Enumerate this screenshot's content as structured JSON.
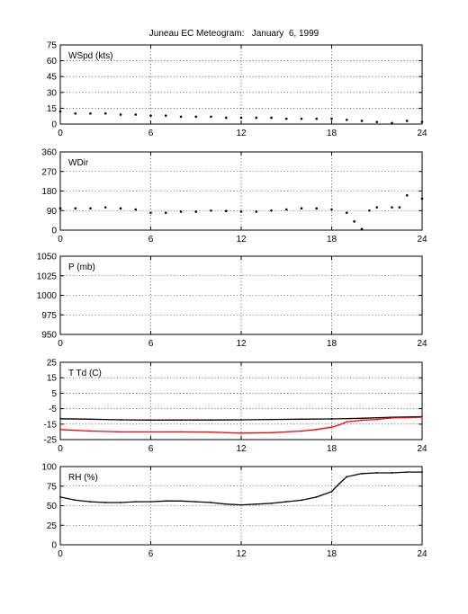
{
  "figure": {
    "title": "Juneau EC Meteogram:   January  6, 1999"
  },
  "chart_data": [
    {
      "type": "scatter",
      "panel_label": "WSpd (kts)",
      "xlim": [
        0,
        24
      ],
      "ylim": [
        0,
        75
      ],
      "xticks": [
        0,
        6,
        12,
        18,
        24
      ],
      "yticks": [
        0,
        15,
        30,
        45,
        60,
        75
      ],
      "grid": true,
      "series": [
        {
          "color": "#000000",
          "x": [
            0,
            1,
            2,
            3,
            4,
            5,
            6,
            7,
            8,
            9,
            10,
            11,
            12,
            13,
            14,
            15,
            16,
            17,
            18,
            19,
            20,
            21,
            22,
            23,
            24
          ],
          "y": [
            12,
            10,
            10,
            10,
            9,
            9,
            8,
            8,
            7,
            7,
            7,
            6,
            6,
            6,
            6,
            5,
            5,
            5,
            5,
            4,
            3,
            2,
            1,
            3,
            2
          ]
        }
      ]
    },
    {
      "type": "scatter",
      "panel_label": "WDir",
      "xlim": [
        0,
        24
      ],
      "ylim": [
        0,
        360
      ],
      "xticks": [
        0,
        6,
        12,
        18,
        24
      ],
      "yticks": [
        0,
        90,
        180,
        270,
        360
      ],
      "grid": true,
      "series": [
        {
          "color": "#000000",
          "x": [
            0,
            1,
            2,
            3,
            4,
            5,
            6,
            7,
            8,
            9,
            10,
            11,
            12,
            13,
            14,
            15,
            16,
            17,
            18,
            19,
            19.5,
            20,
            20.5,
            21,
            22,
            22.5,
            23,
            24
          ],
          "y": [
            100,
            100,
            100,
            105,
            100,
            95,
            80,
            80,
            85,
            85,
            90,
            88,
            85,
            85,
            90,
            95,
            100,
            100,
            95,
            80,
            40,
            5,
            90,
            105,
            105,
            105,
            160,
            145
          ]
        }
      ]
    },
    {
      "type": "line",
      "panel_label": "P (mb)",
      "xlim": [
        0,
        24
      ],
      "ylim": [
        950,
        1050
      ],
      "xticks": [
        0,
        6,
        12,
        18,
        24
      ],
      "yticks": [
        950,
        975,
        1000,
        1025,
        1050
      ],
      "grid": true,
      "series": []
    },
    {
      "type": "line",
      "panel_label": "T Td (C)",
      "xlim": [
        0,
        24
      ],
      "ylim": [
        -25,
        25
      ],
      "xticks": [
        0,
        6,
        12,
        18,
        24
      ],
      "yticks": [
        -25,
        -15,
        -5,
        5,
        15,
        25
      ],
      "grid": true,
      "series": [
        {
          "color": "#000000",
          "x": [
            0,
            2,
            4,
            6,
            8,
            10,
            12,
            14,
            16,
            18,
            20,
            22,
            24
          ],
          "y": [
            -11.5,
            -11.8,
            -12.2,
            -12.4,
            -12.3,
            -12.3,
            -12.2,
            -12.0,
            -11.8,
            -11.6,
            -11.2,
            -10.6,
            -10.2
          ]
        },
        {
          "color": "#ff0000",
          "x": [
            0,
            2,
            4,
            6,
            8,
            10,
            12,
            14,
            16,
            17,
            18,
            18.5,
            19,
            20,
            21,
            22,
            23,
            24
          ],
          "y": [
            -18.5,
            -19.5,
            -20.0,
            -20.0,
            -20.0,
            -20.2,
            -20.8,
            -20.5,
            -19.5,
            -18.5,
            -17.0,
            -15.5,
            -13.5,
            -12.5,
            -12.0,
            -11.0,
            -10.8,
            -10.5
          ]
        }
      ]
    },
    {
      "type": "line",
      "panel_label": "RH (%)",
      "xlim": [
        0,
        24
      ],
      "ylim": [
        0,
        100
      ],
      "xticks": [
        0,
        6,
        12,
        18,
        24
      ],
      "yticks": [
        0,
        25,
        50,
        75,
        100
      ],
      "grid": true,
      "series": [
        {
          "color": "#000000",
          "x": [
            0,
            1,
            2,
            3,
            4,
            5,
            6,
            7,
            8,
            9,
            10,
            11,
            12,
            13,
            14,
            15,
            16,
            17,
            18,
            18.5,
            19,
            20,
            21,
            22,
            23,
            24
          ],
          "y": [
            61,
            57,
            55,
            54,
            54,
            55,
            55,
            56,
            56,
            55,
            54,
            52,
            51,
            52,
            53,
            55,
            57,
            61,
            68,
            78,
            87,
            91,
            92,
            92,
            93,
            93
          ]
        }
      ]
    }
  ]
}
